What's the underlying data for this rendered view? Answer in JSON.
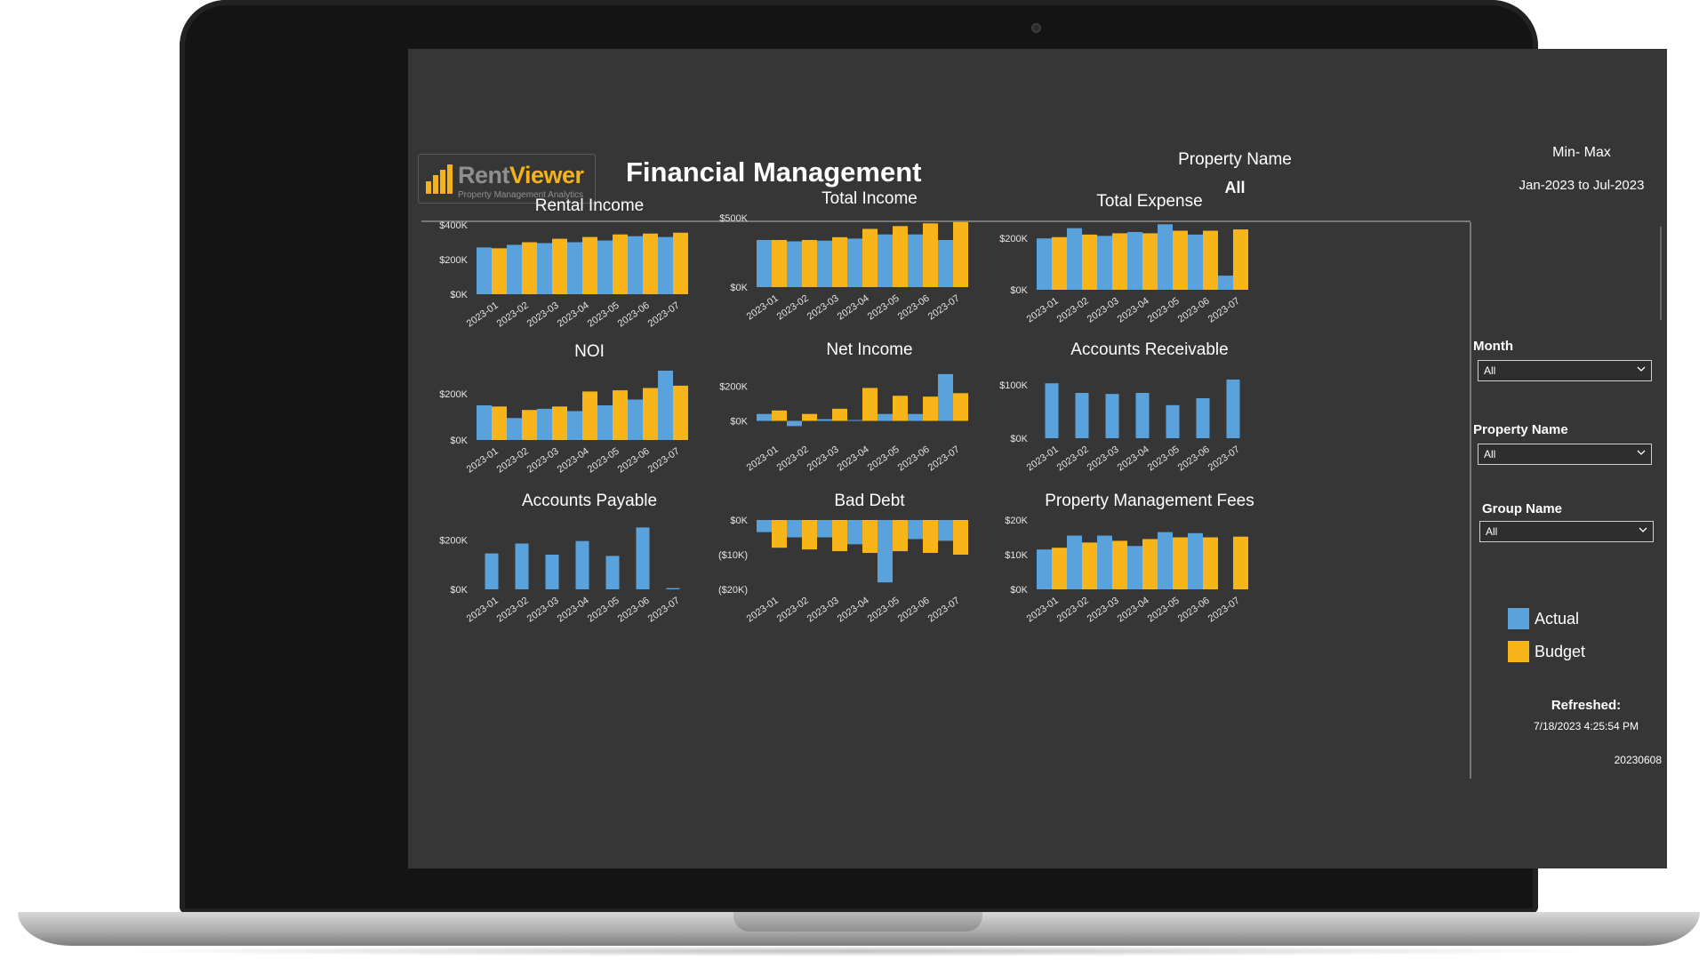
{
  "header": {
    "logo_brand_part1": "Rent",
    "logo_brand_part2": "Viewer",
    "logo_tagline": "Property Management Analytics",
    "title": "Financial Management",
    "property_name_label": "Property Name",
    "property_name_value": "All",
    "minmax_label": "Min- Max",
    "minmax_value": "Jan-2023 to Jul-2023"
  },
  "colors": {
    "actual": "#5aa2dc",
    "budget": "#f7b519",
    "background": "#363636",
    "text": "#ffffff",
    "axis_text": "#e6e6e6"
  },
  "slicers": [
    {
      "label": "Month",
      "value": "All"
    },
    {
      "label": "Property Name",
      "value": "All"
    },
    {
      "label": "Group Name",
      "value": "All"
    }
  ],
  "legend": {
    "actual": "Actual",
    "budget": "Budget"
  },
  "footer": {
    "refreshed_label": "Refreshed:",
    "refreshed_time": "7/18/2023 4:25:54 PM",
    "version": "20230608"
  },
  "chart_data": [
    {
      "type": "bar",
      "title": "Rental Income",
      "categories": [
        "2023-01",
        "2023-02",
        "2023-03",
        "2023-04",
        "2023-05",
        "2023-06",
        "2023-07"
      ],
      "ylim": [
        0,
        400000
      ],
      "ticks": [
        0,
        200000,
        400000
      ],
      "tick_labels": [
        "$0K",
        "$200K",
        "$400K"
      ],
      "series": [
        {
          "name": "Actual",
          "values": [
            270000,
            285000,
            295000,
            300000,
            310000,
            335000,
            330000
          ]
        },
        {
          "name": "Budget",
          "values": [
            265000,
            300000,
            320000,
            330000,
            345000,
            350000,
            355000
          ]
        }
      ]
    },
    {
      "type": "bar",
      "title": "Total Income",
      "categories": [
        "2023-01",
        "2023-02",
        "2023-03",
        "2023-04",
        "2023-05",
        "2023-06",
        "2023-07"
      ],
      "ylim": [
        0,
        500000
      ],
      "ticks": [
        0,
        500000
      ],
      "tick_labels": [
        "$0K",
        "$500K"
      ],
      "series": [
        {
          "name": "Actual",
          "values": [
            340000,
            330000,
            335000,
            350000,
            380000,
            380000,
            340000
          ]
        },
        {
          "name": "Budget",
          "values": [
            340000,
            340000,
            360000,
            420000,
            440000,
            460000,
            470000
          ]
        }
      ]
    },
    {
      "type": "bar",
      "title": "Total Expense",
      "categories": [
        "2023-01",
        "2023-02",
        "2023-03",
        "2023-04",
        "2023-05",
        "2023-06",
        "2023-07"
      ],
      "ylim": [
        0,
        270000
      ],
      "ticks": [
        0,
        200000
      ],
      "tick_labels": [
        "$0K",
        "$200K"
      ],
      "series": [
        {
          "name": "Actual",
          "values": [
            200000,
            240000,
            210000,
            225000,
            255000,
            215000,
            55000
          ]
        },
        {
          "name": "Budget",
          "values": [
            205000,
            215000,
            220000,
            220000,
            230000,
            230000,
            235000
          ]
        }
      ]
    },
    {
      "type": "bar",
      "title": "NOI",
      "categories": [
        "2023-01",
        "2023-02",
        "2023-03",
        "2023-04",
        "2023-05",
        "2023-06",
        "2023-07"
      ],
      "ylim": [
        0,
        300000
      ],
      "ticks": [
        0,
        200000
      ],
      "tick_labels": [
        "$0K",
        "$200K"
      ],
      "series": [
        {
          "name": "Actual",
          "values": [
            150000,
            95000,
            135000,
            125000,
            150000,
            175000,
            300000
          ]
        },
        {
          "name": "Budget",
          "values": [
            145000,
            130000,
            145000,
            210000,
            215000,
            225000,
            235000
          ]
        }
      ]
    },
    {
      "type": "bar",
      "title": "Net Income",
      "categories": [
        "2023-01",
        "2023-02",
        "2023-03",
        "2023-04",
        "2023-05",
        "2023-06",
        "2023-07"
      ],
      "ylim": [
        -100000,
        300000
      ],
      "ticks": [
        0,
        200000
      ],
      "tick_labels": [
        "$0K",
        "$200K"
      ],
      "series": [
        {
          "name": "Actual",
          "values": [
            40000,
            -30000,
            10000,
            5000,
            40000,
            40000,
            270000
          ]
        },
        {
          "name": "Budget",
          "values": [
            60000,
            40000,
            70000,
            190000,
            145000,
            140000,
            160000
          ]
        }
      ]
    },
    {
      "type": "bar",
      "title": "Accounts Receivable",
      "categories": [
        "2023-01",
        "2023-02",
        "2023-03",
        "2023-04",
        "2023-05",
        "2023-06",
        "2023-07"
      ],
      "ylim": [
        0,
        130000
      ],
      "ticks": [
        0,
        100000
      ],
      "tick_labels": [
        "$0K",
        "$100K"
      ],
      "series": [
        {
          "name": "Actual",
          "values": [
            103000,
            85000,
            83000,
            85000,
            62000,
            75000,
            110000
          ]
        }
      ]
    },
    {
      "type": "bar",
      "title": "Accounts Payable",
      "categories": [
        "2023-01",
        "2023-02",
        "2023-03",
        "2023-04",
        "2023-05",
        "2023-06",
        "2023-07"
      ],
      "ylim": [
        0,
        280000
      ],
      "ticks": [
        0,
        200000
      ],
      "tick_labels": [
        "$0K",
        "$200K"
      ],
      "series": [
        {
          "name": "Actual",
          "values": [
            145000,
            185000,
            140000,
            195000,
            135000,
            250000,
            5000
          ]
        }
      ]
    },
    {
      "type": "bar",
      "title": "Bad Debt",
      "categories": [
        "2023-01",
        "2023-02",
        "2023-03",
        "2023-04",
        "2023-05",
        "2023-06",
        "2023-07"
      ],
      "ylim": [
        -20000,
        0
      ],
      "ticks": [
        0,
        -10000,
        -20000
      ],
      "tick_labels": [
        "$0K",
        "($10K)",
        "($20K)"
      ],
      "series": [
        {
          "name": "Actual",
          "values": [
            -3500,
            -5000,
            -5000,
            -7000,
            -18000,
            -5500,
            -6000
          ]
        },
        {
          "name": "Budget",
          "values": [
            -8000,
            -8500,
            -9000,
            -9500,
            -9000,
            -9500,
            -10000
          ]
        }
      ]
    },
    {
      "type": "bar",
      "title": "Property Management Fees",
      "categories": [
        "2023-01",
        "2023-02",
        "2023-03",
        "2023-04",
        "2023-05",
        "2023-06",
        "2023-07"
      ],
      "ylim": [
        0,
        20000
      ],
      "ticks": [
        0,
        10000,
        20000
      ],
      "tick_labels": [
        "$0K",
        "$10K",
        "$20K"
      ],
      "series": [
        {
          "name": "Actual",
          "values": [
            11500,
            15500,
            15500,
            12500,
            16500,
            16200,
            0
          ]
        },
        {
          "name": "Budget",
          "values": [
            12000,
            13500,
            14000,
            14500,
            15000,
            15000,
            15200
          ]
        }
      ]
    }
  ]
}
